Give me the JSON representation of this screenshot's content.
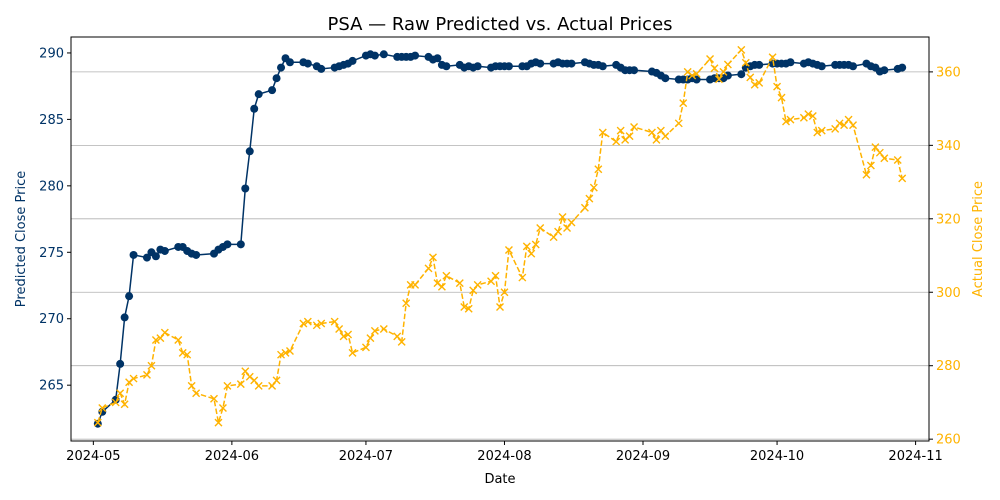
{
  "chart_data": {
    "type": "line",
    "title": "PSA — Raw Predicted vs. Actual Prices",
    "xlabel": "Date",
    "ylabel_left": "Predicted Close Price",
    "ylabel_right": "Actual Close Price",
    "xlim": [
      "2024-04-26",
      "2024-11-04"
    ],
    "ylim_left": [
      260.8,
      291.2
    ],
    "ylim_right": [
      259.5,
      369.5
    ],
    "x_ticks": [
      "2024-05-01",
      "2024-06-01",
      "2024-07-01",
      "2024-08-01",
      "2024-09-01",
      "2024-10-01",
      "2024-11-01"
    ],
    "x_tick_labels": [
      "2024-05",
      "2024-06",
      "2024-07",
      "2024-08",
      "2024-09",
      "2024-10",
      "2024-11"
    ],
    "y_ticks_left": [
      265,
      270,
      275,
      280,
      285,
      290
    ],
    "y_ticks_right": [
      260,
      280,
      300,
      320,
      340,
      360
    ],
    "grid": "horizontal-right-axis",
    "colors": {
      "predicted": "#003366",
      "actual": "#FFB300",
      "axis": "#000000",
      "grid": "#b0b0b0"
    },
    "series": [
      {
        "name": "Predicted Close Price",
        "axis": "left",
        "style": "solid-circle",
        "x": [
          "2024-05-02",
          "2024-05-03",
          "2024-05-06",
          "2024-05-07",
          "2024-05-08",
          "2024-05-09",
          "2024-05-10",
          "2024-05-13",
          "2024-05-14",
          "2024-05-15",
          "2024-05-16",
          "2024-05-17",
          "2024-05-20",
          "2024-05-21",
          "2024-05-22",
          "2024-05-23",
          "2024-05-24",
          "2024-05-28",
          "2024-05-29",
          "2024-05-30",
          "2024-05-31",
          "2024-06-03",
          "2024-06-04",
          "2024-06-05",
          "2024-06-06",
          "2024-06-07",
          "2024-06-10",
          "2024-06-11",
          "2024-06-12",
          "2024-06-13",
          "2024-06-14",
          "2024-06-17",
          "2024-06-18",
          "2024-06-20",
          "2024-06-21",
          "2024-06-24",
          "2024-06-25",
          "2024-06-26",
          "2024-06-27",
          "2024-06-28",
          "2024-07-01",
          "2024-07-02",
          "2024-07-03",
          "2024-07-05",
          "2024-07-08",
          "2024-07-09",
          "2024-07-10",
          "2024-07-11",
          "2024-07-12",
          "2024-07-15",
          "2024-07-16",
          "2024-07-17",
          "2024-07-18",
          "2024-07-19",
          "2024-07-22",
          "2024-07-23",
          "2024-07-24",
          "2024-07-25",
          "2024-07-26",
          "2024-07-29",
          "2024-07-30",
          "2024-07-31",
          "2024-08-01",
          "2024-08-02",
          "2024-08-05",
          "2024-08-06",
          "2024-08-07",
          "2024-08-08",
          "2024-08-09",
          "2024-08-12",
          "2024-08-13",
          "2024-08-14",
          "2024-08-15",
          "2024-08-16",
          "2024-08-19",
          "2024-08-20",
          "2024-08-21",
          "2024-08-22",
          "2024-08-23",
          "2024-08-26",
          "2024-08-27",
          "2024-08-28",
          "2024-08-29",
          "2024-08-30",
          "2024-09-03",
          "2024-09-04",
          "2024-09-05",
          "2024-09-06",
          "2024-09-09",
          "2024-09-10",
          "2024-09-11",
          "2024-09-12",
          "2024-09-13",
          "2024-09-16",
          "2024-09-17",
          "2024-09-18",
          "2024-09-19",
          "2024-09-20",
          "2024-09-23",
          "2024-09-24",
          "2024-09-25",
          "2024-09-26",
          "2024-09-27",
          "2024-09-30",
          "2024-10-01",
          "2024-10-02",
          "2024-10-03",
          "2024-10-04",
          "2024-10-07",
          "2024-10-08",
          "2024-10-09",
          "2024-10-10",
          "2024-10-11",
          "2024-10-14",
          "2024-10-15",
          "2024-10-16",
          "2024-10-17",
          "2024-10-18",
          "2024-10-21",
          "2024-10-22",
          "2024-10-23",
          "2024-10-24",
          "2024-10-25",
          "2024-10-28",
          "2024-10-29"
        ],
        "values": [
          262.1,
          263.0,
          263.9,
          266.6,
          270.1,
          271.7,
          274.8,
          274.6,
          275.0,
          274.7,
          275.2,
          275.1,
          275.4,
          275.4,
          275.1,
          274.9,
          274.8,
          274.9,
          275.2,
          275.4,
          275.6,
          275.6,
          279.8,
          282.6,
          285.8,
          286.9,
          287.2,
          288.1,
          288.9,
          289.6,
          289.3,
          289.3,
          289.2,
          289.0,
          288.8,
          288.9,
          289.0,
          289.1,
          289.2,
          289.4,
          289.8,
          289.9,
          289.8,
          289.9,
          289.7,
          289.7,
          289.7,
          289.7,
          289.8,
          289.7,
          289.5,
          289.6,
          289.1,
          289.0,
          289.1,
          288.9,
          289.0,
          288.9,
          289.0,
          288.9,
          289.0,
          289.0,
          289.0,
          289.0,
          289.0,
          289.0,
          289.2,
          289.3,
          289.2,
          289.2,
          289.3,
          289.2,
          289.2,
          289.2,
          289.3,
          289.2,
          289.1,
          289.1,
          289.0,
          289.1,
          288.9,
          288.7,
          288.7,
          288.7,
          288.6,
          288.5,
          288.3,
          288.1,
          288.0,
          288.0,
          288.0,
          288.1,
          288.0,
          288.0,
          288.1,
          288.1,
          288.1,
          288.3,
          288.4,
          288.9,
          289.0,
          289.1,
          289.1,
          289.2,
          289.2,
          289.2,
          289.2,
          289.3,
          289.2,
          289.3,
          289.2,
          289.1,
          289.0,
          289.1,
          289.1,
          289.1,
          289.1,
          289.0,
          289.2,
          289.0,
          288.9,
          288.6,
          288.7,
          288.8,
          288.9
        ]
      },
      {
        "name": "Actual Close Price",
        "axis": "right",
        "style": "dashed-x",
        "x": [
          "2024-05-02",
          "2024-05-03",
          "2024-05-06",
          "2024-05-07",
          "2024-05-08",
          "2024-05-09",
          "2024-05-10",
          "2024-05-13",
          "2024-05-14",
          "2024-05-15",
          "2024-05-16",
          "2024-05-17",
          "2024-05-20",
          "2024-05-21",
          "2024-05-22",
          "2024-05-23",
          "2024-05-24",
          "2024-05-28",
          "2024-05-29",
          "2024-05-30",
          "2024-05-31",
          "2024-06-03",
          "2024-06-04",
          "2024-06-05",
          "2024-06-06",
          "2024-06-07",
          "2024-06-10",
          "2024-06-11",
          "2024-06-12",
          "2024-06-13",
          "2024-06-14",
          "2024-06-17",
          "2024-06-18",
          "2024-06-20",
          "2024-06-21",
          "2024-06-24",
          "2024-06-25",
          "2024-06-26",
          "2024-06-27",
          "2024-06-28",
          "2024-07-01",
          "2024-07-02",
          "2024-07-03",
          "2024-07-05",
          "2024-07-08",
          "2024-07-09",
          "2024-07-10",
          "2024-07-11",
          "2024-07-12",
          "2024-07-15",
          "2024-07-16",
          "2024-07-17",
          "2024-07-18",
          "2024-07-19",
          "2024-07-22",
          "2024-07-23",
          "2024-07-24",
          "2024-07-25",
          "2024-07-26",
          "2024-07-29",
          "2024-07-30",
          "2024-07-31",
          "2024-08-01",
          "2024-08-02",
          "2024-08-05",
          "2024-08-06",
          "2024-08-07",
          "2024-08-08",
          "2024-08-09",
          "2024-08-12",
          "2024-08-13",
          "2024-08-14",
          "2024-08-15",
          "2024-08-16",
          "2024-08-19",
          "2024-08-20",
          "2024-08-21",
          "2024-08-22",
          "2024-08-23",
          "2024-08-26",
          "2024-08-27",
          "2024-08-28",
          "2024-08-29",
          "2024-08-30",
          "2024-09-03",
          "2024-09-04",
          "2024-09-05",
          "2024-09-06",
          "2024-09-09",
          "2024-09-10",
          "2024-09-11",
          "2024-09-12",
          "2024-09-13",
          "2024-09-16",
          "2024-09-17",
          "2024-09-18",
          "2024-09-19",
          "2024-09-20",
          "2024-09-23",
          "2024-09-24",
          "2024-09-25",
          "2024-09-26",
          "2024-09-27",
          "2024-09-30",
          "2024-10-01",
          "2024-10-02",
          "2024-10-03",
          "2024-10-04",
          "2024-10-07",
          "2024-10-08",
          "2024-10-09",
          "2024-10-10",
          "2024-10-11",
          "2024-10-14",
          "2024-10-15",
          "2024-10-16",
          "2024-10-17",
          "2024-10-18",
          "2024-10-21",
          "2024-10-22",
          "2024-10-23",
          "2024-10-24",
          "2024-10-25",
          "2024-10-28",
          "2024-10-29"
        ],
        "values": [
          264.5,
          268.5,
          270.0,
          272.5,
          269.5,
          275.5,
          276.5,
          277.5,
          280.0,
          287.0,
          287.5,
          289.0,
          287.0,
          283.5,
          283.0,
          274.5,
          272.5,
          271.0,
          264.5,
          268.5,
          274.5,
          275.0,
          278.5,
          277.0,
          276.0,
          274.5,
          274.5,
          276.0,
          283.0,
          283.5,
          284.0,
          291.5,
          292.0,
          291.0,
          291.5,
          292.0,
          290.0,
          288.0,
          288.5,
          283.5,
          285.0,
          287.5,
          289.5,
          290.0,
          288.0,
          286.5,
          297.0,
          302.0,
          302.0,
          306.5,
          309.5,
          302.5,
          301.5,
          304.5,
          302.5,
          296.0,
          295.5,
          300.5,
          302.0,
          303.0,
          304.5,
          296.0,
          300.0,
          311.5,
          304.0,
          312.5,
          310.5,
          313.0,
          317.5,
          315.0,
          316.5,
          320.5,
          317.5,
          319.0,
          323.0,
          325.5,
          328.5,
          333.5,
          343.5,
          341.0,
          344.0,
          341.5,
          342.5,
          345.0,
          343.5,
          341.5,
          344.0,
          342.5,
          346.0,
          351.5,
          360.0,
          359.0,
          359.5,
          363.5,
          361.0,
          358.0,
          360.0,
          362.0,
          366.0,
          362.5,
          358.5,
          356.5,
          357.0,
          364.0,
          356.0,
          353.0,
          346.5,
          347.0,
          347.5,
          348.5,
          348.0,
          343.5,
          344.0,
          344.5,
          346.0,
          345.5,
          347.0,
          345.5,
          332.0,
          334.5,
          339.5,
          338.0,
          336.5,
          336.0,
          331.0
        ]
      }
    ]
  }
}
